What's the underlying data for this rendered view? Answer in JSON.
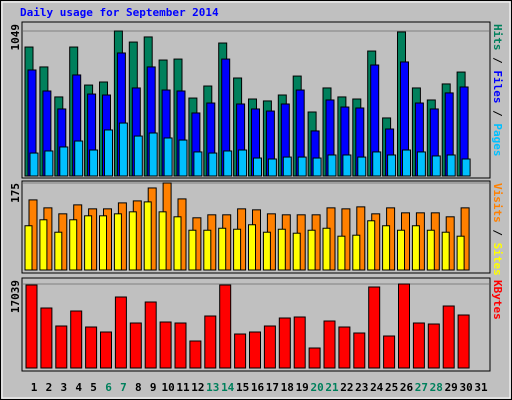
{
  "chart_data": [
    {
      "type": "bar",
      "title": "Daily usage for September 2014",
      "ylim": [
        0,
        1049
      ],
      "yticks": [
        1049
      ],
      "separator": "/",
      "series": [
        {
          "name": "Hits",
          "color": "#00805c",
          "values": [
            933,
            789,
            572,
            933,
            658,
            680,
            1049,
            969,
            1006,
            839,
            846,
            564,
            651,
            962,
            709,
            557,
            543,
            586,
            723,
            463,
            637,
            572,
            557,
            904,
            420,
            1042,
            637,
            550,
            666,
            752,
            null
          ]
        },
        {
          "name": "Files",
          "color": "#0000ff",
          "values": [
            767,
            615,
            485,
            731,
            593,
            586,
            890,
            637,
            789,
            622,
            615,
            456,
            528,
            846,
            521,
            485,
            470,
            521,
            622,
            326,
            550,
            499,
            492,
            803,
            340,
            825,
            528,
            485,
            601,
            644,
            null
          ]
        },
        {
          "name": "Pages",
          "color": "#00c0ff",
          "values": [
            166,
            181,
            210,
            253,
            188,
            333,
            383,
            289,
            311,
            275,
            260,
            174,
            166,
            181,
            188,
            130,
            123,
            137,
            137,
            130,
            152,
            152,
            137,
            174,
            152,
            188,
            174,
            145,
            152,
            123,
            null
          ]
        }
      ]
    },
    {
      "type": "bar",
      "ylim": [
        0,
        175
      ],
      "yticks": [
        175
      ],
      "separator": "/",
      "series": [
        {
          "name": "Visits",
          "color": "#ff8000",
          "values": [
            141,
            125,
            113,
            131,
            123,
            123,
            135,
            139,
            165,
            175,
            143,
            105,
            111,
            111,
            123,
            121,
            113,
            111,
            111,
            111,
            125,
            123,
            127,
            113,
            125,
            115,
            115,
            115,
            107,
            125,
            null
          ]
        },
        {
          "name": "Sites",
          "color": "#ffff00",
          "values": [
            89,
            101,
            76,
            101,
            109,
            109,
            113,
            117,
            137,
            117,
            107,
            80,
            80,
            84,
            82,
            91,
            76,
            82,
            74,
            80,
            84,
            68,
            70,
            99,
            89,
            80,
            89,
            80,
            76,
            68,
            null
          ]
        }
      ]
    },
    {
      "type": "bar",
      "ylim": [
        0,
        17039
      ],
      "yticks": [
        17039
      ],
      "categories": [
        "1",
        "2",
        "3",
        "4",
        "5",
        "6",
        "7",
        "8",
        "9",
        "10",
        "11",
        "12",
        "13",
        "14",
        "15",
        "16",
        "17",
        "18",
        "19",
        "20",
        "21",
        "22",
        "23",
        "24",
        "25",
        "26",
        "27",
        "28",
        "29",
        "30",
        "31"
      ],
      "highlight_indices": [
        5,
        6,
        12,
        13,
        19,
        20,
        26,
        27
      ],
      "highlight_color": "#00805c",
      "series": [
        {
          "name": "KBytes",
          "color": "#ff0000",
          "values": [
            16836,
            12171,
            8520,
            11562,
            8317,
            7302,
            14402,
            9128,
            13388,
            9331,
            9128,
            5477,
            10548,
            16836,
            6897,
            7302,
            8520,
            10142,
            10345,
            4057,
            9534,
            8317,
            7100,
            16431,
            6491,
            17039,
            9128,
            8925,
            12576,
            10751,
            null
          ]
        }
      ]
    }
  ]
}
